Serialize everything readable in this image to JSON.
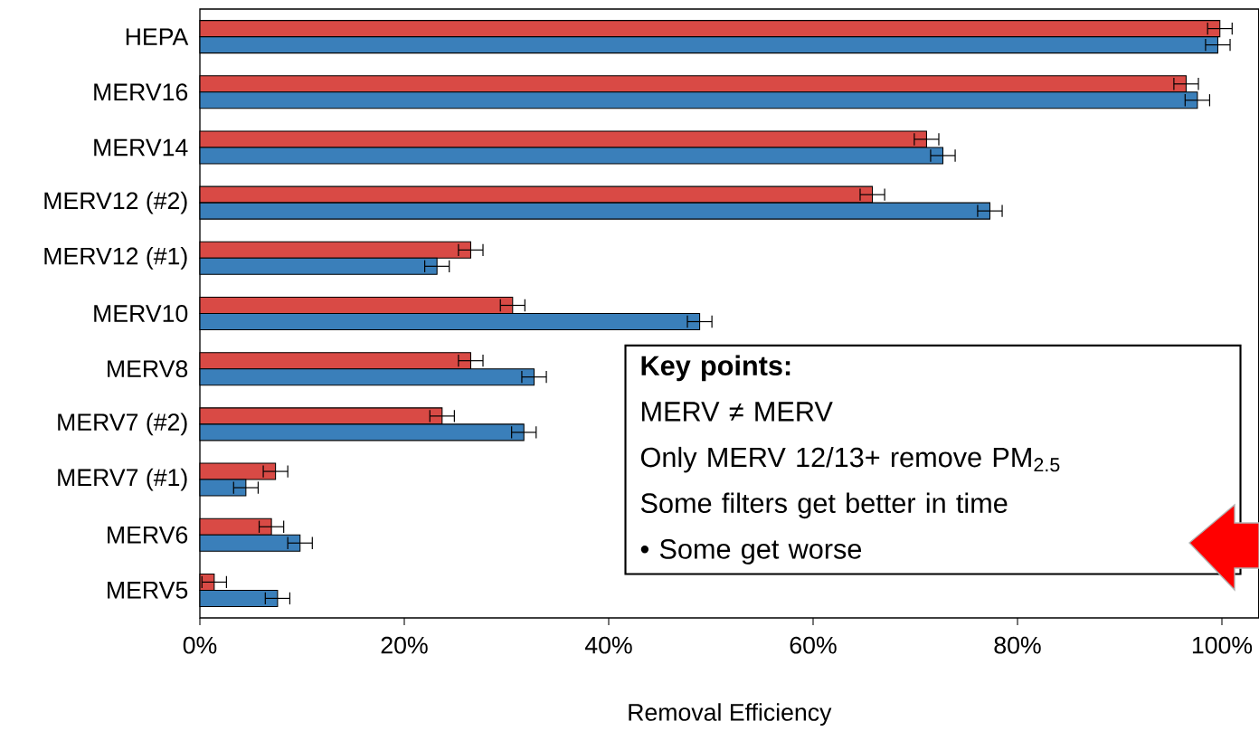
{
  "chart_data": {
    "type": "bar",
    "orientation": "horizontal",
    "xlabel": "Removal Efficiency",
    "categories": [
      "HEPA",
      "MERV16",
      "MERV14",
      "MERV12 (#2)",
      "MERV12 (#1)",
      "MERV10",
      "MERV8",
      "MERV7 (#2)",
      "MERV7 (#1)",
      "MERV6",
      "MERV5"
    ],
    "series": [
      {
        "color": "#d94a45",
        "values": [
          99.8,
          96.5,
          71.1,
          65.8,
          26.5,
          30.6,
          26.5,
          23.7,
          7.4,
          7.0,
          1.4
        ],
        "errors": [
          1.2,
          1.2,
          1.2,
          1.2,
          1.2,
          1.2,
          1.2,
          1.2,
          1.2,
          1.2,
          1.2
        ]
      },
      {
        "color": "#3a7fba",
        "values": [
          99.6,
          97.6,
          72.7,
          77.3,
          23.2,
          48.9,
          32.7,
          31.7,
          4.5,
          9.8,
          7.6
        ],
        "errors": [
          1.2,
          1.2,
          1.2,
          1.2,
          1.2,
          1.2,
          1.2,
          1.2,
          1.2,
          1.2,
          1.2
        ]
      }
    ],
    "xlim": [
      0,
      103.6
    ],
    "xticks": [
      {
        "value": 0,
        "label": "0%"
      },
      {
        "value": 20,
        "label": "20%"
      },
      {
        "value": 40,
        "label": "40%"
      },
      {
        "value": 60,
        "label": "60%"
      },
      {
        "value": 80,
        "label": "80%"
      },
      {
        "value": 100,
        "label": "100%"
      }
    ],
    "grid": false,
    "annotations": [
      "Key points:",
      "MERV ≠ MERV",
      "Only MERV 12/13+ remove PM$_{2.5}$",
      "Some filters get better in time",
      "•     Some get worse"
    ]
  }
}
